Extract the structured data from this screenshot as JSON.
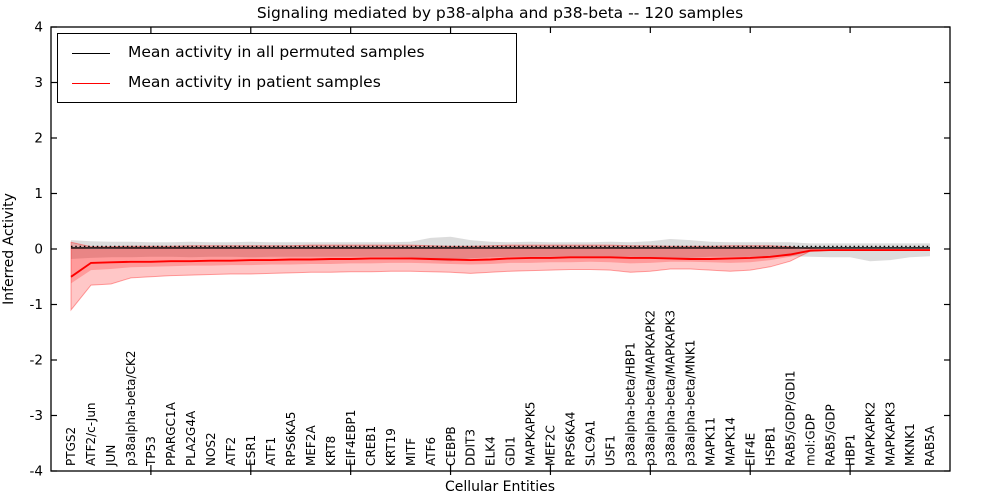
{
  "chart_data": {
    "type": "line",
    "title": "Signaling mediated by p38-alpha and p38-beta -- 120 samples",
    "xlabel": "Cellular Entities",
    "ylabel": "Inferred Activity",
    "ylim": [
      -4,
      4
    ],
    "xlim": [
      0,
      45
    ],
    "yticks": [
      4,
      3,
      2,
      1,
      0,
      -1,
      -2,
      -3,
      -4
    ],
    "ytick_labels": [
      "4",
      "3",
      "2",
      "1",
      "0",
      "-1",
      "-2",
      "-3",
      "-4"
    ],
    "xticks_major": [
      5,
      10,
      15,
      20,
      25,
      30,
      35,
      40
    ],
    "grid": false,
    "legend": {
      "position": "upper left",
      "frame": true
    },
    "zero_line": {
      "y": 0,
      "style": "dotted",
      "color": "#000000"
    },
    "x": [
      1,
      2,
      3,
      4,
      5,
      6,
      7,
      8,
      9,
      10,
      11,
      12,
      13,
      14,
      15,
      16,
      17,
      18,
      19,
      20,
      21,
      22,
      23,
      24,
      25,
      26,
      27,
      28,
      29,
      30,
      31,
      32,
      33,
      34,
      35,
      36,
      37,
      38,
      39,
      40,
      41,
      42,
      43,
      44
    ],
    "categories": [
      "PTGS2",
      "ATF2/c-Jun",
      "JUN",
      "p38alpha-beta/CK2",
      "TP53",
      "PPARGC1A",
      "PLA2G4A",
      "NOS2",
      "ATF2",
      "ESR1",
      "ATF1",
      "RPS6KA5",
      "MEF2A",
      "KRT8",
      "EIF4EBP1",
      "CREB1",
      "KRT19",
      "MITF",
      "ATF6",
      "CEBPB",
      "DDIT3",
      "ELK4",
      "GDI1",
      "MAPKAPK5",
      "MEF2C",
      "RPS6KA4",
      "SLC9A1",
      "USF1",
      "p38alpha-beta/HBP1",
      "p38alpha-beta/MAPKAPK2",
      "p38alpha-beta/MAPKAPK3",
      "p38alpha-beta/MNK1",
      "MAPK11",
      "MAPK14",
      "EIF4E",
      "HSPB1",
      "RAB5/GDP/GDI1",
      "mol:GDP",
      "RAB5/GDP",
      "HBP1",
      "MAPKAPK2",
      "MAPKAPK3",
      "MKNK1",
      "RAB5A"
    ],
    "series": [
      {
        "name": "Mean activity in all permuted samples",
        "color": "#000000",
        "band_color": "#bfbfbf",
        "values": [
          0.02,
          0.02,
          0.02,
          0.02,
          0.02,
          0.02,
          0.02,
          0.02,
          0.02,
          0.02,
          0.02,
          0.02,
          0.02,
          0.02,
          0.02,
          0.02,
          0.02,
          0.02,
          0.02,
          0.02,
          0.02,
          0.02,
          0.02,
          0.02,
          0.02,
          0.02,
          0.02,
          0.02,
          0.02,
          0.02,
          0.02,
          0.02,
          0.02,
          0.02,
          0.02,
          0.02,
          0.02,
          0.02,
          0.02,
          0.02,
          0.02,
          0.02,
          0.02,
          0.02
        ],
        "band_upper": [
          0.16,
          0.14,
          0.13,
          0.13,
          0.12,
          0.12,
          0.13,
          0.12,
          0.12,
          0.13,
          0.12,
          0.12,
          0.12,
          0.12,
          0.12,
          0.12,
          0.12,
          0.13,
          0.2,
          0.22,
          0.16,
          0.13,
          0.12,
          0.13,
          0.12,
          0.12,
          0.12,
          0.13,
          0.12,
          0.14,
          0.18,
          0.16,
          0.13,
          0.12,
          0.12,
          0.12,
          0.12,
          0.1,
          0.1,
          0.1,
          0.1,
          0.1,
          0.1,
          0.1
        ],
        "band_lower": [
          -0.18,
          -0.16,
          -0.15,
          -0.15,
          -0.14,
          -0.14,
          -0.15,
          -0.14,
          -0.14,
          -0.15,
          -0.14,
          -0.14,
          -0.14,
          -0.14,
          -0.14,
          -0.14,
          -0.14,
          -0.15,
          -0.2,
          -0.22,
          -0.17,
          -0.15,
          -0.14,
          -0.14,
          -0.14,
          -0.14,
          -0.14,
          -0.15,
          -0.14,
          -0.15,
          -0.18,
          -0.16,
          -0.14,
          -0.14,
          -0.14,
          -0.14,
          -0.13,
          -0.14,
          -0.15,
          -0.15,
          -0.22,
          -0.2,
          -0.15,
          -0.13
        ]
      },
      {
        "name": "Mean activity in patient samples",
        "color": "#ff0000",
        "band_color": "#ff0000",
        "values": [
          -0.5,
          -0.25,
          -0.24,
          -0.23,
          -0.23,
          -0.22,
          -0.22,
          -0.21,
          -0.21,
          -0.2,
          -0.2,
          -0.19,
          -0.19,
          -0.18,
          -0.18,
          -0.17,
          -0.17,
          -0.17,
          -0.18,
          -0.19,
          -0.2,
          -0.19,
          -0.17,
          -0.16,
          -0.16,
          -0.15,
          -0.15,
          -0.15,
          -0.16,
          -0.16,
          -0.17,
          -0.18,
          -0.18,
          -0.17,
          -0.16,
          -0.14,
          -0.1,
          -0.03,
          -0.02,
          -0.02,
          -0.02,
          -0.02,
          -0.02,
          -0.02
        ],
        "band_upper": [
          0.12,
          0.04,
          0.04,
          0.05,
          0.05,
          0.05,
          0.06,
          0.06,
          0.06,
          0.06,
          0.06,
          0.06,
          0.07,
          0.07,
          0.07,
          0.07,
          0.07,
          0.07,
          0.06,
          0.05,
          0.05,
          0.06,
          0.07,
          0.07,
          0.07,
          0.07,
          0.07,
          0.07,
          0.06,
          0.06,
          0.05,
          0.05,
          0.05,
          0.06,
          0.06,
          0.06,
          0.04,
          0.0,
          -0.02,
          -0.02,
          -0.02,
          -0.02,
          -0.02,
          -0.02
        ],
        "band_lower": [
          -1.1,
          -0.65,
          -0.63,
          -0.52,
          -0.5,
          -0.48,
          -0.47,
          -0.46,
          -0.45,
          -0.45,
          -0.44,
          -0.43,
          -0.42,
          -0.42,
          -0.41,
          -0.41,
          -0.4,
          -0.4,
          -0.41,
          -0.42,
          -0.44,
          -0.42,
          -0.4,
          -0.39,
          -0.38,
          -0.37,
          -0.37,
          -0.38,
          -0.42,
          -0.4,
          -0.36,
          -0.36,
          -0.38,
          -0.4,
          -0.38,
          -0.32,
          -0.22,
          -0.04,
          -0.02,
          -0.02,
          -0.02,
          -0.02,
          -0.02,
          -0.02
        ],
        "band_inner_upper": [
          0.02,
          0.0,
          0.0,
          0.01,
          0.01,
          0.01,
          0.02,
          0.02,
          0.02,
          0.02,
          0.02,
          0.02,
          0.03,
          0.03,
          0.03,
          0.03,
          0.03,
          0.03,
          0.02,
          0.01,
          0.01,
          0.02,
          0.03,
          0.03,
          0.03,
          0.03,
          0.03,
          0.03,
          0.02,
          0.02,
          0.01,
          0.01,
          0.01,
          0.02,
          0.02,
          0.02,
          0.01,
          -0.01,
          -0.02,
          -0.02,
          -0.02,
          -0.02,
          -0.02,
          -0.02
        ],
        "band_inner_lower": [
          -0.62,
          -0.38,
          -0.36,
          -0.33,
          -0.32,
          -0.31,
          -0.3,
          -0.3,
          -0.29,
          -0.29,
          -0.28,
          -0.28,
          -0.27,
          -0.27,
          -0.26,
          -0.26,
          -0.25,
          -0.25,
          -0.26,
          -0.27,
          -0.28,
          -0.27,
          -0.25,
          -0.25,
          -0.24,
          -0.24,
          -0.23,
          -0.24,
          -0.26,
          -0.25,
          -0.23,
          -0.23,
          -0.24,
          -0.25,
          -0.24,
          -0.2,
          -0.14,
          -0.03,
          -0.02,
          -0.02,
          -0.02,
          -0.02,
          -0.02,
          -0.02
        ]
      }
    ]
  }
}
